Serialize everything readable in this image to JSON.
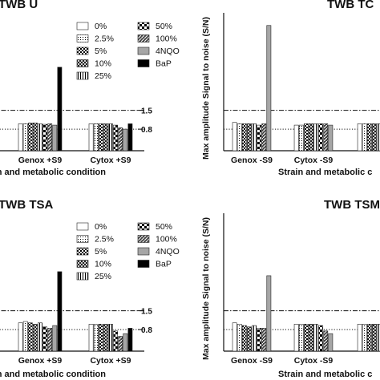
{
  "chart_data": [
    {
      "type": "bar",
      "title": "TWB U",
      "xlabel": "Strain and metabolic condition",
      "ylabel": "",
      "categories": [
        "Genox +S9",
        "Cytox +S9"
      ],
      "reference_lines": [
        {
          "value": 1.5,
          "label": "1.5",
          "style": "dash-dot"
        },
        {
          "value": 0.8,
          "label": "0.8",
          "style": "dotted"
        }
      ],
      "ylim": [
        0,
        5
      ],
      "legend_position": "top",
      "series": [
        {
          "name": "0%",
          "values": [
            1.0,
            1.0
          ]
        },
        {
          "name": "2.5%",
          "values": [
            1.0,
            1.0
          ]
        },
        {
          "name": "5%",
          "values": [
            1.03,
            1.0
          ]
        },
        {
          "name": "10%",
          "values": [
            1.03,
            1.0
          ]
        },
        {
          "name": "25%",
          "values": [
            1.0,
            1.0
          ]
        },
        {
          "name": "50%",
          "values": [
            0.98,
            0.95
          ]
        },
        {
          "name": "100%",
          "values": [
            1.0,
            0.85
          ]
        },
        {
          "name": "4NQO",
          "values": [
            0.95,
            0.8
          ]
        },
        {
          "name": "BaP",
          "values": [
            3.1,
            1.0
          ]
        }
      ]
    },
    {
      "type": "bar",
      "title": "TWB TC",
      "xlabel": "Strain and metabolic c",
      "ylabel": "Max amplitude Signal to noise (S/N)",
      "categories": [
        "Genox -S9",
        "Cytox -S9",
        ""
      ],
      "reference_lines": [
        {
          "value": 1.5,
          "style": "dash-dot"
        },
        {
          "value": 0.8,
          "style": "dotted"
        }
      ],
      "ylim": [
        0,
        5
      ],
      "series": [
        {
          "name": "0%",
          "values": [
            1.05,
            0.95,
            1.0
          ]
        },
        {
          "name": "2.5%",
          "values": [
            1.0,
            0.95,
            1.0
          ]
        },
        {
          "name": "5%",
          "values": [
            1.0,
            1.0,
            1.0
          ]
        },
        {
          "name": "10%",
          "values": [
            1.0,
            1.0,
            1.0
          ]
        },
        {
          "name": "25%",
          "values": [
            1.0,
            1.0,
            1.0
          ]
        },
        {
          "name": "50%",
          "values": [
            0.95,
            1.0,
            1.0
          ]
        },
        {
          "name": "100%",
          "values": [
            1.0,
            1.0,
            1.0
          ]
        },
        {
          "name": "4NQO",
          "values": [
            4.65,
            0.95,
            1.0
          ]
        },
        {
          "name": "BaP",
          "values": [
            null,
            null,
            null
          ]
        }
      ]
    },
    {
      "type": "bar",
      "title": "TWB TSA",
      "xlabel": "Strain and metabolic condition",
      "ylabel": "",
      "categories": [
        "Genox +S9",
        "Cytox +S9"
      ],
      "reference_lines": [
        {
          "value": 1.5,
          "label": "1.5",
          "style": "dash-dot"
        },
        {
          "value": 0.8,
          "label": "0.8",
          "style": "dotted"
        }
      ],
      "ylim": [
        0,
        5
      ],
      "legend_position": "top",
      "series": [
        {
          "name": "0%",
          "values": [
            1.05,
            1.0
          ]
        },
        {
          "name": "2.5%",
          "values": [
            1.1,
            1.0
          ]
        },
        {
          "name": "5%",
          "values": [
            1.05,
            1.0
          ]
        },
        {
          "name": "10%",
          "values": [
            1.0,
            1.0
          ]
        },
        {
          "name": "25%",
          "values": [
            1.05,
            1.0
          ]
        },
        {
          "name": "50%",
          "values": [
            0.9,
            0.75
          ]
        },
        {
          "name": "100%",
          "values": [
            0.85,
            0.55
          ]
        },
        {
          "name": "4NQO",
          "values": [
            0.95,
            0.65
          ]
        },
        {
          "name": "BaP",
          "values": [
            2.95,
            0.85
          ]
        }
      ]
    },
    {
      "type": "bar",
      "title": "TWB TSM",
      "xlabel": "Strain and metabolic c",
      "ylabel": "Max amplitude Signal to noise (S/N)",
      "categories": [
        "Genox -S9",
        "Cytox -S9",
        ""
      ],
      "reference_lines": [
        {
          "value": 1.5,
          "style": "dash-dot"
        },
        {
          "value": 0.8,
          "style": "dotted"
        }
      ],
      "ylim": [
        0,
        5
      ],
      "series": [
        {
          "name": "0%",
          "values": [
            1.05,
            1.0,
            1.0
          ]
        },
        {
          "name": "2.5%",
          "values": [
            1.0,
            1.0,
            1.0
          ]
        },
        {
          "name": "5%",
          "values": [
            0.95,
            1.0,
            1.0
          ]
        },
        {
          "name": "10%",
          "values": [
            0.9,
            1.0,
            1.0
          ]
        },
        {
          "name": "25%",
          "values": [
            0.95,
            1.0,
            1.0
          ]
        },
        {
          "name": "50%",
          "values": [
            0.85,
            0.95,
            1.0
          ]
        },
        {
          "name": "100%",
          "values": [
            0.85,
            0.75,
            1.0
          ]
        },
        {
          "name": "4NQO",
          "values": [
            2.8,
            0.65,
            1.05
          ]
        },
        {
          "name": "BaP",
          "values": [
            null,
            null,
            null
          ]
        }
      ]
    }
  ],
  "colors": {
    "axis": "#111111",
    "bar_outline": "#222222",
    "4NQO": "#a6a6a6",
    "BaP": "#000000"
  }
}
